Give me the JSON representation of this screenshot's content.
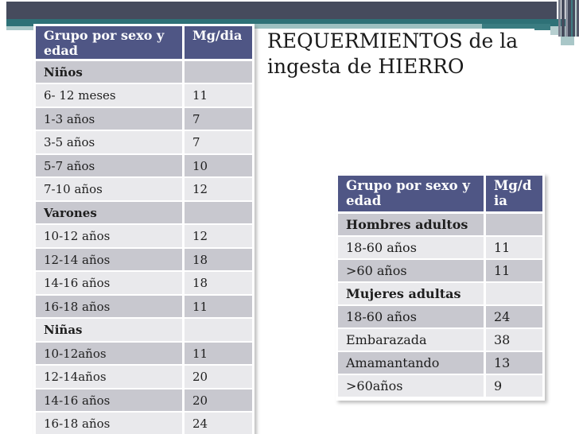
{
  "slide": {
    "title": "REQUERMIENTOS de la ingesta de HIERRO"
  },
  "left_table": {
    "headers": [
      "Grupo por sexo y edad",
      "Mg/dia"
    ],
    "rows": [
      {
        "label": "Niños",
        "value": "",
        "section": true
      },
      {
        "label": "6- 12 meses",
        "value": "11"
      },
      {
        "label": "1-3 años",
        "value": "7"
      },
      {
        "label": "3-5 años",
        "value": "7"
      },
      {
        "label": "5-7 años",
        "value": "10"
      },
      {
        "label": "7-10 años",
        "value": "12"
      },
      {
        "label": "Varones",
        "value": "",
        "section": true
      },
      {
        "label": "10-12 años",
        "value": "12"
      },
      {
        "label": "12-14 años",
        "value": "18"
      },
      {
        "label": "14-16 años",
        "value": "18"
      },
      {
        "label": "16-18 años",
        "value": "11"
      },
      {
        "label": "Niñas",
        "value": "",
        "section": true
      },
      {
        "label": "10-12años",
        "value": "11"
      },
      {
        "label": "12-14años",
        "value": "20"
      },
      {
        "label": "14-16 años",
        "value": "20"
      },
      {
        "label": "16-18 años",
        "value": "24"
      }
    ]
  },
  "right_table": {
    "headers": [
      "Grupo por sexo y edad",
      "Mg/dia"
    ],
    "rows": [
      {
        "label": "Hombres adultos",
        "value": "",
        "section": true
      },
      {
        "label": "18-60 años",
        "value": "11"
      },
      {
        "label": ">60 años",
        "value": "11"
      },
      {
        "label": "Mujeres adultas",
        "value": "",
        "section": true
      },
      {
        "label": "18-60 años",
        "value": "24"
      },
      {
        "label": "Embarazada",
        "value": "38"
      },
      {
        "label": "Amamantando",
        "value": "13"
      },
      {
        "label": ">60años",
        "value": "9"
      }
    ]
  },
  "colors": {
    "header_bg": "#4f5685",
    "row_mid": "#c8c8cf",
    "row_light": "#e9e9ec",
    "band_dark": "#464b5d",
    "band_teal": "#2e7177",
    "band_pale": "#a9c7c8"
  }
}
